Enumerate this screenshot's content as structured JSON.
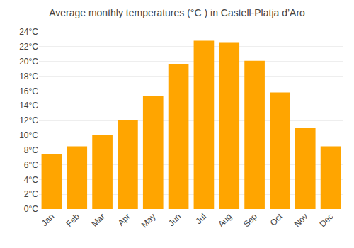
{
  "chart_data": {
    "type": "bar",
    "title": "Average monthly temperatures (°C ) in Castell-Platja d’Aro",
    "categories": [
      "Jan",
      "Feb",
      "Mar",
      "Apr",
      "May",
      "Jun",
      "Jul",
      "Aug",
      "Sep",
      "Oct",
      "Nov",
      "Dec"
    ],
    "values": [
      7.5,
      8.5,
      10.0,
      12.0,
      15.3,
      19.6,
      22.8,
      22.6,
      20.1,
      15.8,
      11.0,
      8.5
    ],
    "color": "#FFA500",
    "ylim": [
      0,
      24
    ],
    "yticks": [
      {
        "value": 0,
        "label": "0°C"
      },
      {
        "value": 2,
        "label": "2°C"
      },
      {
        "value": 4,
        "label": "4°C"
      },
      {
        "value": 6,
        "label": "6°C"
      },
      {
        "value": 8,
        "label": "8°C"
      },
      {
        "value": 10,
        "label": "10°C"
      },
      {
        "value": 12,
        "label": "12°C"
      },
      {
        "value": 14,
        "label": "14°C"
      },
      {
        "value": 16,
        "label": "16°C"
      },
      {
        "value": 18,
        "label": "18°C"
      },
      {
        "value": 20,
        "label": "20°C"
      },
      {
        "value": 22,
        "label": "22°C"
      },
      {
        "value": 24,
        "label": "24°C"
      }
    ],
    "grid": true
  }
}
